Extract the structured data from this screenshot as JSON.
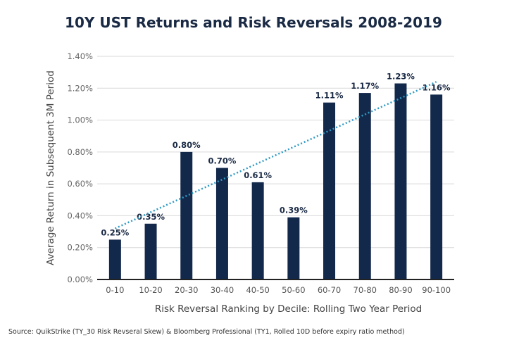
{
  "chart_data": {
    "type": "bar",
    "title": "10Y UST Returns and Risk Reversals 2008-2019",
    "xlabel": "Risk Reversal Ranking by Decile: Rolling Two Year Period",
    "ylabel": "Average Return in Subsequent 3M Period",
    "categories": [
      "0-10",
      "10-20",
      "20-30",
      "30-40",
      "40-50",
      "50-60",
      "60-70",
      "70-80",
      "80-90",
      "90-100"
    ],
    "values": [
      0.25,
      0.35,
      0.8,
      0.7,
      0.61,
      0.39,
      1.11,
      1.17,
      1.23,
      1.16
    ],
    "data_labels": [
      "0.25%",
      "0.35%",
      "0.80%",
      "0.70%",
      "0.61%",
      "0.39%",
      "1.11%",
      "1.17%",
      "1.23%",
      "1.16%"
    ],
    "ylim": [
      0,
      1.4
    ],
    "yticks": [
      0,
      0.2,
      0.4,
      0.6,
      0.8,
      1.0,
      1.2,
      1.4
    ],
    "ytick_labels": [
      "0.00%",
      "0.20%",
      "0.40%",
      "0.60%",
      "0.80%",
      "1.00%",
      "1.20%",
      "1.40%"
    ],
    "grid": true,
    "trendline": {
      "type": "linear",
      "style": "dotted",
      "start": 0.32,
      "end": 1.24
    },
    "colors": {
      "bar": "#13294b",
      "trend": "#2e9ac4",
      "grid": "#d9d9d9",
      "axis": "#222222",
      "text": "#1a2a44"
    },
    "legend": "none"
  },
  "footer": {
    "source": "Source: QuikStrike (TY_30 Risk Revseral Skew) & Bloomberg Professional (TY1, Rolled 10D before expiry ratio method)"
  }
}
